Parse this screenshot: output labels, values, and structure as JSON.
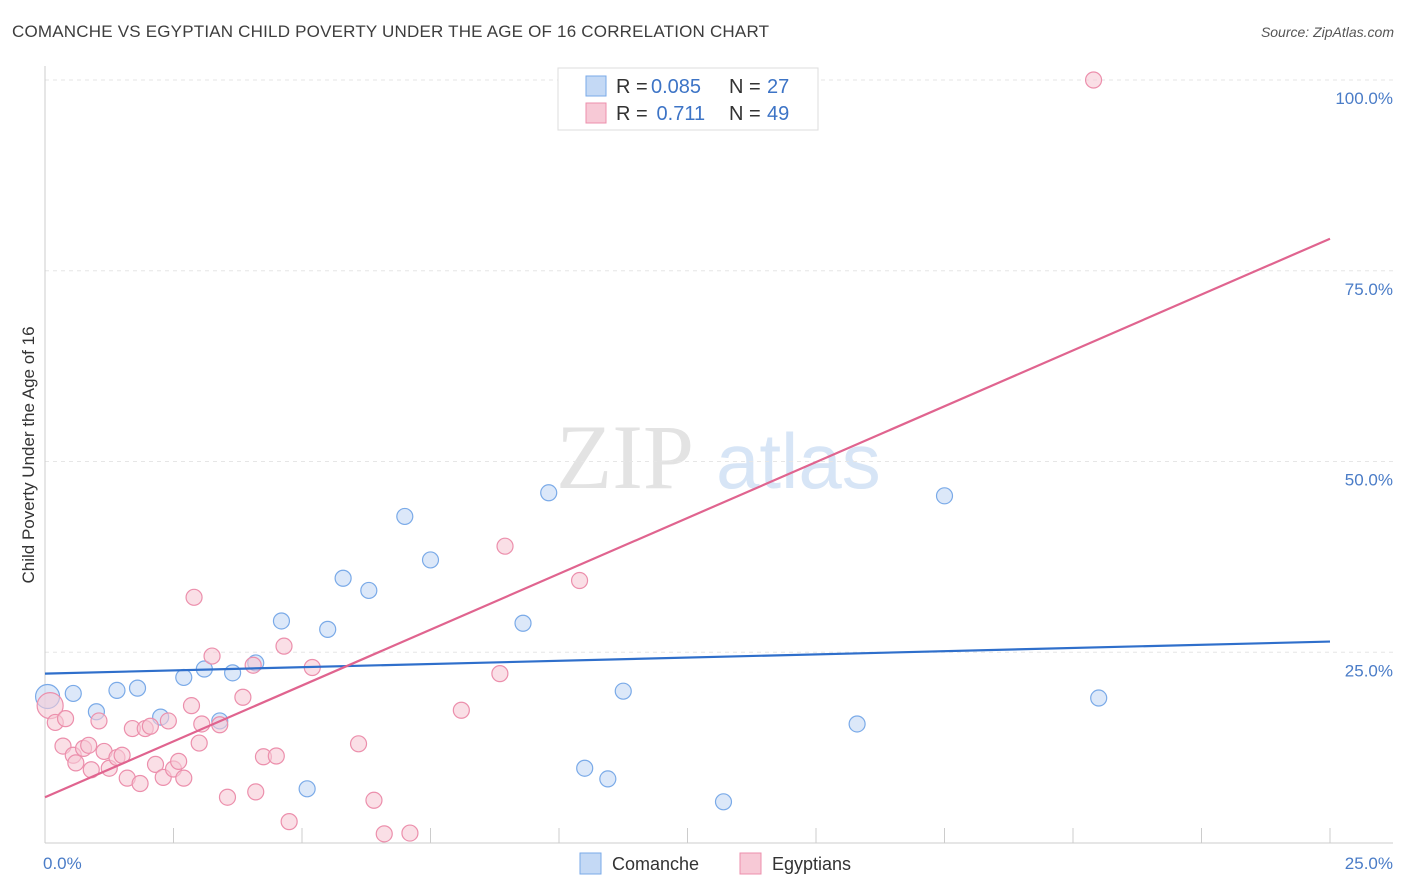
{
  "title": "COMANCHE VS EGYPTIAN CHILD POVERTY UNDER THE AGE OF 16 CORRELATION CHART",
  "source": "Source: ZipAtlas.com",
  "watermark": {
    "zip": "ZIP",
    "atlas": "atlas"
  },
  "legend": [
    {
      "r_label": "R = ",
      "r_value": "0.085",
      "n_label": "N = ",
      "n_value": "27"
    },
    {
      "r_label": "R = ",
      "r_value": " 0.711",
      "n_label": "N = ",
      "n_value": "49"
    }
  ],
  "chart_data": {
    "type": "scatter",
    "title": "COMANCHE VS EGYPTIAN CHILD POVERTY UNDER THE AGE OF 16 CORRELATION CHART",
    "xlabel": "",
    "ylabel": "Child Poverty Under the Age of 16",
    "xlim": [
      0,
      25
    ],
    "ylim": [
      0,
      100
    ],
    "x_tick_labels": [
      {
        "value": 0,
        "label": "0.0%"
      },
      {
        "value": 25,
        "label": "25.0%"
      }
    ],
    "y_tick_labels": [
      {
        "value": 25,
        "label": "25.0%"
      },
      {
        "value": 50,
        "label": "50.0%"
      },
      {
        "value": 75,
        "label": "75.0%"
      },
      {
        "value": 100,
        "label": "100.0%"
      }
    ],
    "grid": true,
    "legend_position": "top-center",
    "series": [
      {
        "name": "Comanche",
        "color": "#7aaae8",
        "fill": "#c4d9f5",
        "r": 0.085,
        "n": 27,
        "trend": [
          [
            0,
            22.2
          ],
          [
            25,
            26.4
          ]
        ],
        "points": [
          [
            0.05,
            19.2
          ],
          [
            0.55,
            19.6
          ],
          [
            1.0,
            17.2
          ],
          [
            1.4,
            20.0
          ],
          [
            1.8,
            20.3
          ],
          [
            2.25,
            16.5
          ],
          [
            2.7,
            21.7
          ],
          [
            3.1,
            22.8
          ],
          [
            3.4,
            16.0
          ],
          [
            3.65,
            22.3
          ],
          [
            4.1,
            23.6
          ],
          [
            4.6,
            29.1
          ],
          [
            5.1,
            7.1
          ],
          [
            5.5,
            28.0
          ],
          [
            5.8,
            34.7
          ],
          [
            6.3,
            33.1
          ],
          [
            7.0,
            42.8
          ],
          [
            7.5,
            37.1
          ],
          [
            9.3,
            28.8
          ],
          [
            9.8,
            45.9
          ],
          [
            10.5,
            9.8
          ],
          [
            10.95,
            8.4
          ],
          [
            11.25,
            19.9
          ],
          [
            13.2,
            5.4
          ],
          [
            15.8,
            15.6
          ],
          [
            17.5,
            45.5
          ],
          [
            20.5,
            19.0
          ]
        ]
      },
      {
        "name": "Egyptians",
        "color": "#ec8fac",
        "fill": "#f7c9d6",
        "r": 0.711,
        "n": 49,
        "trend": [
          [
            0,
            6.0
          ],
          [
            25,
            79.2
          ]
        ],
        "points": [
          [
            0.1,
            18.0
          ],
          [
            0.2,
            15.8
          ],
          [
            0.35,
            12.7
          ],
          [
            0.4,
            16.3
          ],
          [
            0.55,
            11.5
          ],
          [
            0.6,
            10.5
          ],
          [
            0.75,
            12.4
          ],
          [
            0.85,
            12.8
          ],
          [
            0.9,
            9.6
          ],
          [
            1.05,
            16.0
          ],
          [
            1.15,
            12.0
          ],
          [
            1.25,
            9.8
          ],
          [
            1.4,
            11.2
          ],
          [
            1.5,
            11.5
          ],
          [
            1.6,
            8.5
          ],
          [
            1.7,
            15.0
          ],
          [
            1.85,
            7.8
          ],
          [
            1.95,
            15.0
          ],
          [
            2.05,
            15.3
          ],
          [
            2.15,
            10.3
          ],
          [
            2.3,
            8.6
          ],
          [
            2.4,
            16.0
          ],
          [
            2.5,
            9.7
          ],
          [
            2.6,
            10.7
          ],
          [
            2.7,
            8.5
          ],
          [
            2.85,
            18.0
          ],
          [
            2.9,
            32.2
          ],
          [
            3.0,
            13.1
          ],
          [
            3.05,
            15.6
          ],
          [
            3.25,
            24.5
          ],
          [
            3.4,
            15.5
          ],
          [
            3.55,
            6.0
          ],
          [
            3.85,
            19.1
          ],
          [
            4.05,
            23.3
          ],
          [
            4.1,
            6.7
          ],
          [
            4.25,
            11.3
          ],
          [
            4.5,
            11.4
          ],
          [
            4.75,
            2.8
          ],
          [
            4.65,
            25.8
          ],
          [
            5.2,
            23.0
          ],
          [
            6.1,
            13.0
          ],
          [
            6.4,
            5.6
          ],
          [
            6.6,
            1.2
          ],
          [
            7.1,
            1.3
          ],
          [
            8.1,
            17.4
          ],
          [
            8.85,
            22.2
          ],
          [
            8.95,
            38.9
          ],
          [
            10.4,
            34.4
          ],
          [
            20.4,
            100.0
          ]
        ]
      }
    ]
  }
}
